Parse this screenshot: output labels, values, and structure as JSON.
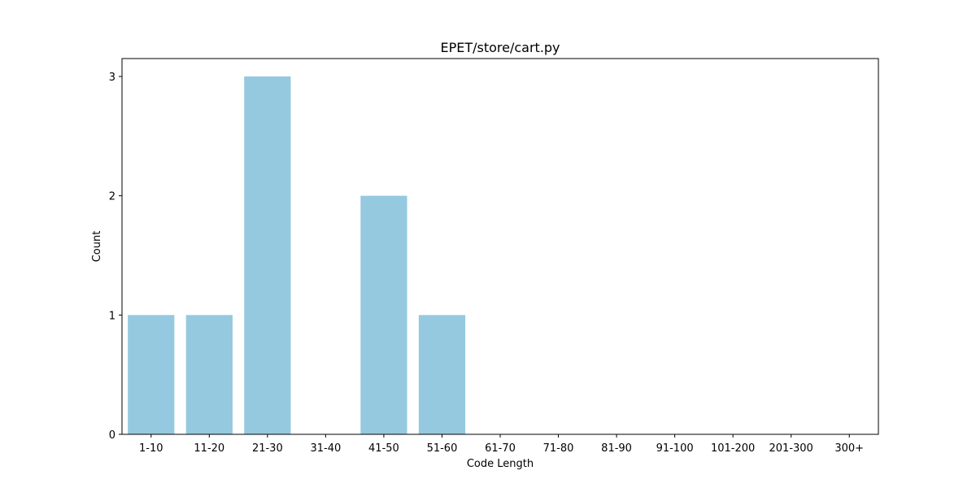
{
  "chart_data": {
    "type": "bar",
    "title": "EPET/store/cart.py",
    "xlabel": "Code Length",
    "ylabel": "Count",
    "categories": [
      "1-10",
      "11-20",
      "21-30",
      "31-40",
      "41-50",
      "51-60",
      "61-70",
      "71-80",
      "81-90",
      "91-100",
      "101-200",
      "201-300",
      "300+"
    ],
    "values": [
      1,
      1,
      3,
      0,
      2,
      1,
      0,
      0,
      0,
      0,
      0,
      0,
      0
    ],
    "yticks": [
      "0",
      "1",
      "2",
      "3"
    ],
    "ylim": [
      0,
      3.15
    ],
    "grid": false,
    "legend": "none",
    "bar_color": "#95c9df",
    "axis_color": "#000000"
  }
}
